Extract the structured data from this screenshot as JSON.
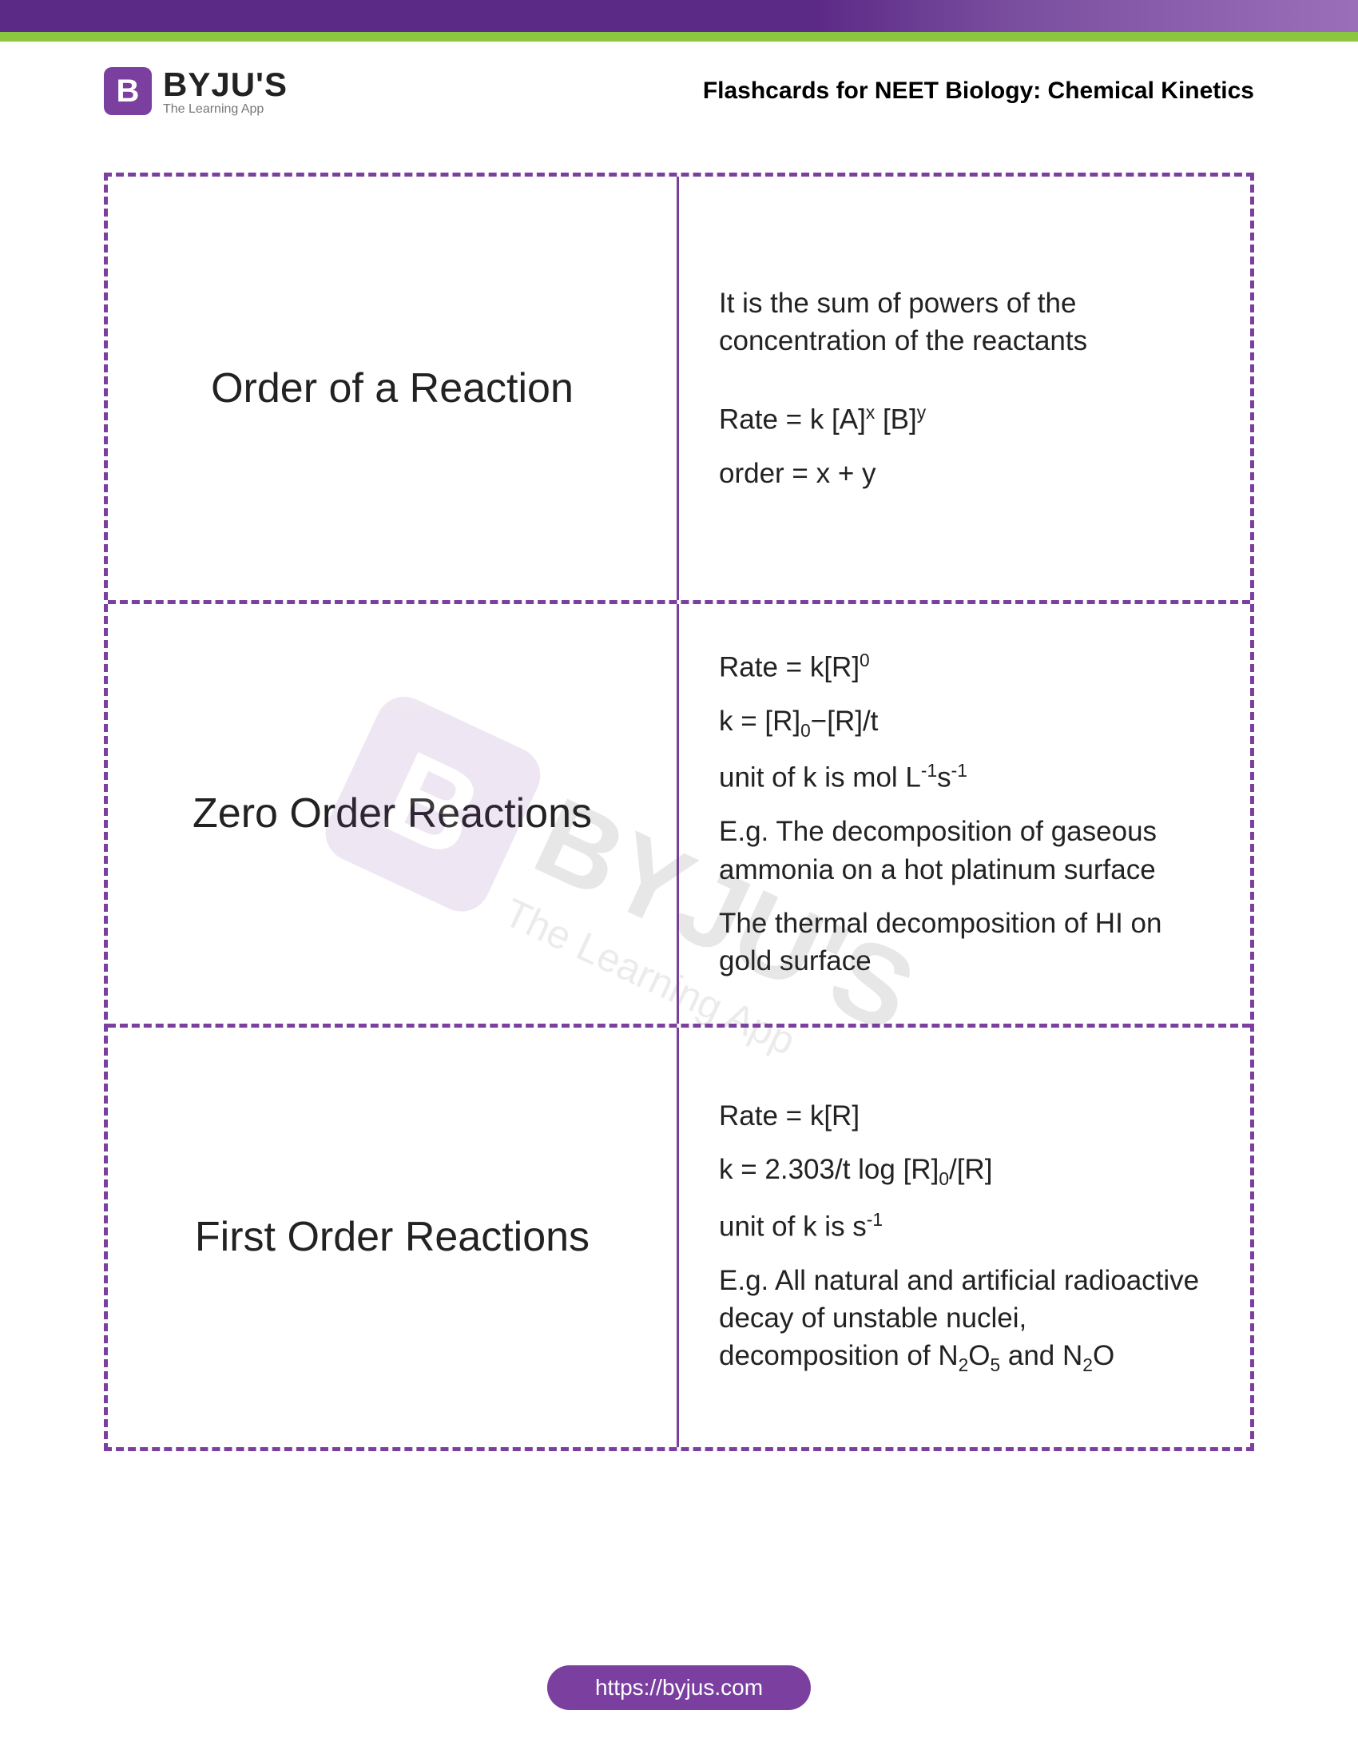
{
  "header": {
    "bar_color_start": "#5b2a86",
    "bar_color_end": "#9b6fb8",
    "stripe_color": "#8cc63f"
  },
  "logo": {
    "badge_letter": "B",
    "name": "BYJU'S",
    "tagline": "The Learning App",
    "badge_bg": "#7b3fa0"
  },
  "page_title": "Flashcards for NEET Biology: Chemical Kinetics",
  "watermark": {
    "name": "BYJU'S",
    "tagline": "The Learning App"
  },
  "cards": {
    "border_color": "#7b3fa0",
    "rows": [
      {
        "title": "Order of a Reaction",
        "body_html": "<p>It is the sum of powers of the concentration of the reactants</p><p style='margin-top:40px'>Rate = k [A]<sup>x</sup> [B]<sup>y</sup></p><p>order = x + y</p>"
      },
      {
        "title": "Zero Order Reactions",
        "body_html": "<p>Rate = k[R]<sup>0</sup></p><p>k = [R]<sub>0</sub>−[R]/t</p><p>unit of k is mol L<sup>-1</sup>s<sup>-1</sup></p><p>E.g. The decomposition of gaseous ammonia on a hot platinum surface</p><p>The thermal decomposition of HI on gold surface</p>"
      },
      {
        "title": "First Order Reactions",
        "body_html": "<p>Rate = k[R]</p><p>k = 2.303/t log [R]<sub>0</sub>/[R]</p><p>unit of k is s<sup>-1</sup></p><p>E.g. All natural and artificial radioactive decay of unstable nuclei, decomposition of N<sub>2</sub>O<sub>5</sub> and N<sub>2</sub>O</p>"
      }
    ]
  },
  "footer": {
    "url": "https://byjus.com",
    "bg": "#7b3fa0"
  }
}
